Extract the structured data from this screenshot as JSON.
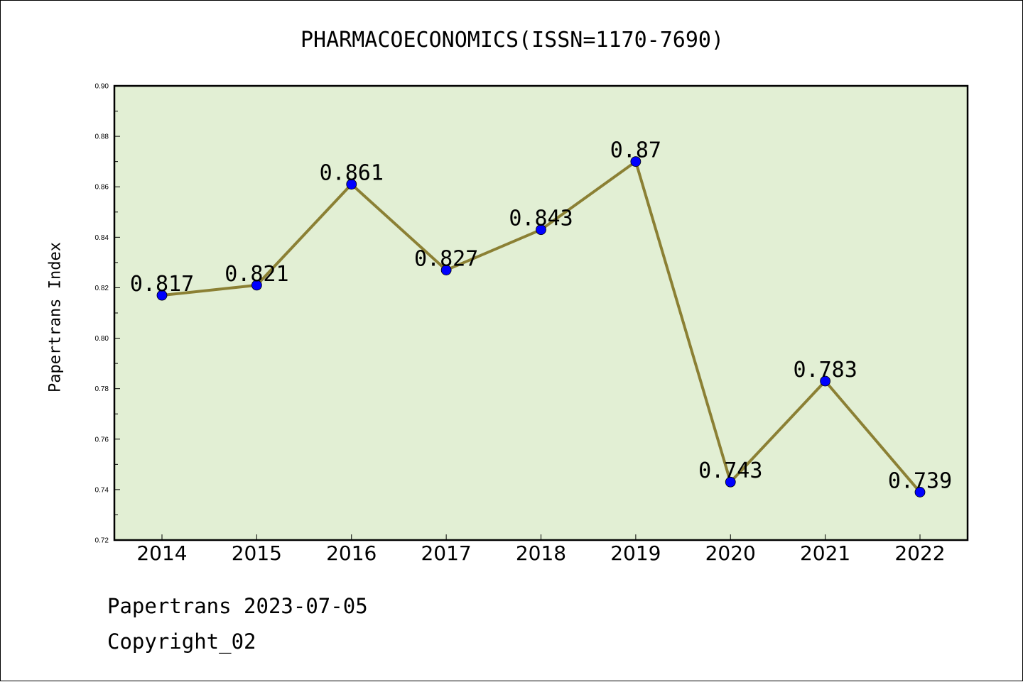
{
  "title": "PHARMACOECONOMICS(ISSN=1170-7690)",
  "footer": {
    "line1": "Papertrans 2023-07-05",
    "line2": "Copyright_02"
  },
  "colors": {
    "plot_background": "#e2efd4",
    "line": "#8b8034",
    "marker": "#0000ff",
    "axis": "#000000"
  },
  "chart_data": {
    "type": "line",
    "title": "PHARMACOECONOMICS(ISSN=1170-7690)",
    "xlabel": "",
    "ylabel": "Papertrans Index",
    "categories": [
      "2014",
      "2015",
      "2016",
      "2017",
      "2018",
      "2019",
      "2020",
      "2021",
      "2022"
    ],
    "values": [
      0.817,
      0.821,
      0.861,
      0.827,
      0.843,
      0.87,
      0.743,
      0.783,
      0.739
    ],
    "data_labels": [
      "0.817",
      "0.821",
      "0.861",
      "0.827",
      "0.843",
      "0.87",
      "0.743",
      "0.783",
      "0.739"
    ],
    "ylim": [
      0.72,
      0.9
    ],
    "yticks": [
      "0.72",
      "0.74",
      "0.76",
      "0.78",
      "0.80",
      "0.82",
      "0.84",
      "0.86",
      "0.88",
      "0.90"
    ],
    "grid": false,
    "legend": "none"
  }
}
